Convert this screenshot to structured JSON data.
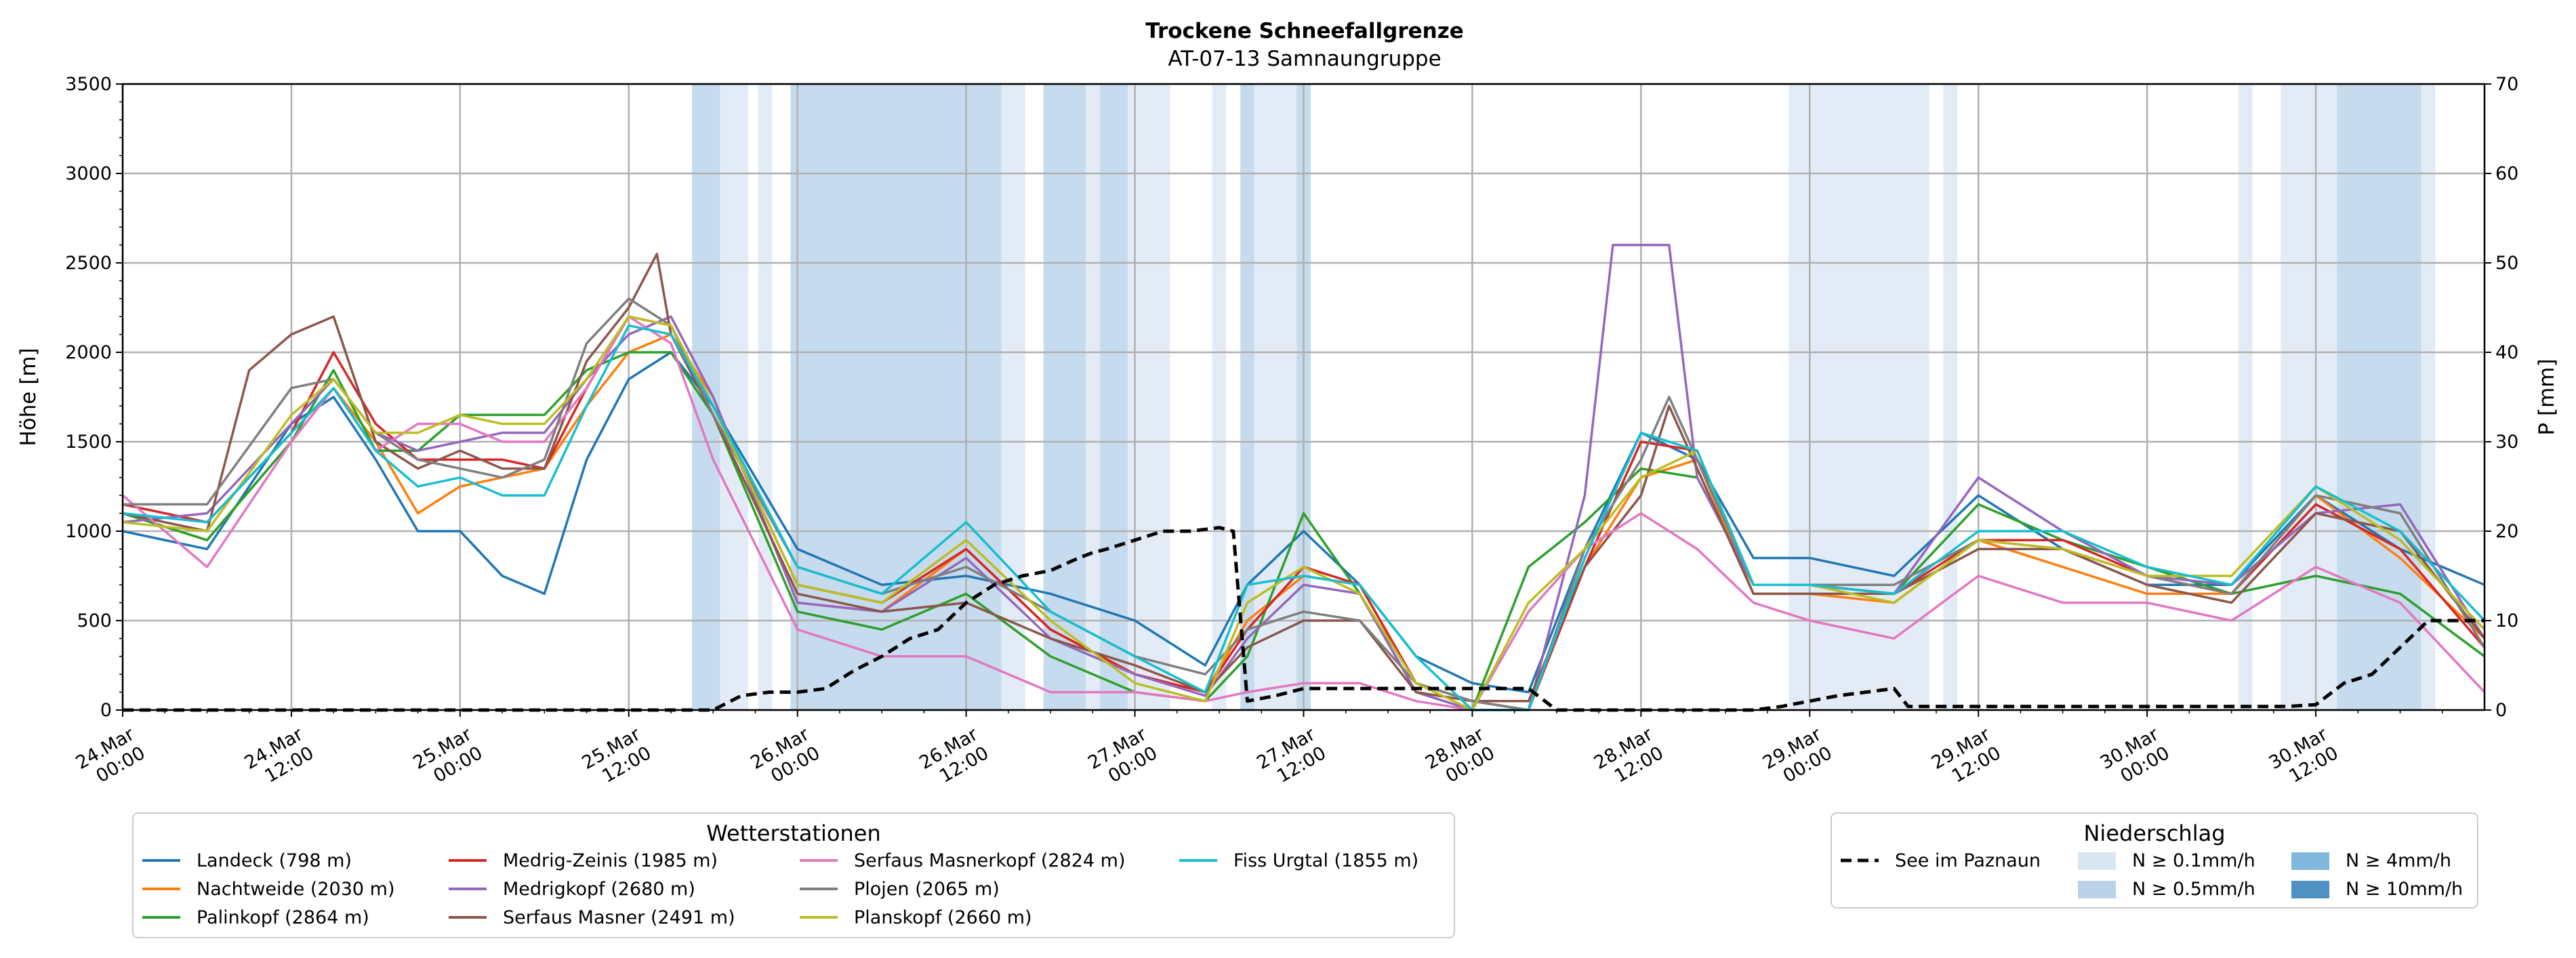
{
  "chart_data": {
    "type": "line",
    "title": "Trockene Schneefallgrenze",
    "subtitle": "AT-07-13 Samnaungruppe",
    "ylabel": "Höhe [m]",
    "y2label": "P [mm]",
    "ylim": [
      0,
      3500
    ],
    "y2lim": [
      0,
      70
    ],
    "yticks": [
      0,
      500,
      1000,
      1500,
      2000,
      2500,
      3000,
      3500
    ],
    "y2ticks": [
      0,
      10,
      20,
      30,
      40,
      50,
      60,
      70
    ],
    "x_unit": "hours since 24.Mar 00:00",
    "xlim": [
      0,
      168
    ],
    "xticks": [
      {
        "pos": 0,
        "line1": "24.Mar",
        "line2": "00:00"
      },
      {
        "pos": 12,
        "line1": "24.Mar",
        "line2": "12:00"
      },
      {
        "pos": 24,
        "line1": "25.Mar",
        "line2": "00:00"
      },
      {
        "pos": 36,
        "line1": "25.Mar",
        "line2": "12:00"
      },
      {
        "pos": 48,
        "line1": "26.Mar",
        "line2": "00:00"
      },
      {
        "pos": 60,
        "line1": "26.Mar",
        "line2": "12:00"
      },
      {
        "pos": 72,
        "line1": "27.Mar",
        "line2": "00:00"
      },
      {
        "pos": 84,
        "line1": "27.Mar",
        "line2": "12:00"
      },
      {
        "pos": 96,
        "line1": "28.Mar",
        "line2": "00:00"
      },
      {
        "pos": 108,
        "line1": "28.Mar",
        "line2": "12:00"
      },
      {
        "pos": 120,
        "line1": "29.Mar",
        "line2": "00:00"
      },
      {
        "pos": 132,
        "line1": "29.Mar",
        "line2": "12:00"
      },
      {
        "pos": 144,
        "line1": "30.Mar",
        "line2": "00:00"
      },
      {
        "pos": 156,
        "line1": "30.Mar",
        "line2": "12:00"
      }
    ],
    "precip_bands": [
      {
        "start": 40.5,
        "end": 42.5,
        "level": 2
      },
      {
        "start": 42.5,
        "end": 44.5,
        "level": 1
      },
      {
        "start": 45.2,
        "end": 46.2,
        "level": 1
      },
      {
        "start": 47.5,
        "end": 62.5,
        "level": 2
      },
      {
        "start": 62.5,
        "end": 64.2,
        "level": 1
      },
      {
        "start": 65.5,
        "end": 68.5,
        "level": 2
      },
      {
        "start": 68.5,
        "end": 69.5,
        "level": 1
      },
      {
        "start": 69.5,
        "end": 71.5,
        "level": 2
      },
      {
        "start": 71.5,
        "end": 74.5,
        "level": 1
      },
      {
        "start": 77.5,
        "end": 78.5,
        "level": 1
      },
      {
        "start": 79.5,
        "end": 80.5,
        "level": 2
      },
      {
        "start": 80.5,
        "end": 83.5,
        "level": 1
      },
      {
        "start": 83.5,
        "end": 84.5,
        "level": 2
      },
      {
        "start": 118.5,
        "end": 128.5,
        "level": 1
      },
      {
        "start": 129.5,
        "end": 130.5,
        "level": 1
      },
      {
        "start": 150.5,
        "end": 151.5,
        "level": 1
      },
      {
        "start": 153.5,
        "end": 157.5,
        "level": 1
      },
      {
        "start": 157.5,
        "end": 163.5,
        "level": 2
      },
      {
        "start": 163.5,
        "end": 164.5,
        "level": 1
      }
    ],
    "series": [
      {
        "name": "Landeck (798 m)",
        "color": "#1f77b4",
        "x": [
          0,
          6,
          12,
          15,
          18,
          21,
          24,
          27,
          30,
          33,
          36,
          39,
          42,
          48,
          54,
          60,
          66,
          72,
          77,
          80,
          84,
          88,
          92,
          96,
          100,
          104,
          108,
          112,
          116,
          120,
          126,
          132,
          138,
          144,
          150,
          156,
          162,
          168
        ],
        "y": [
          1000,
          900,
          1600,
          1750,
          1400,
          1000,
          1000,
          750,
          650,
          1400,
          1850,
          2000,
          1700,
          900,
          700,
          750,
          650,
          500,
          250,
          700,
          1000,
          700,
          300,
          150,
          100,
          900,
          1550,
          1400,
          850,
          850,
          750,
          1200,
          900,
          700,
          700,
          1200,
          900,
          700
        ]
      },
      {
        "name": "Nachtweide (2030 m)",
        "color": "#ff7f0e",
        "x": [
          0,
          6,
          12,
          15,
          18,
          21,
          24,
          27,
          30,
          33,
          36,
          39,
          42,
          48,
          54,
          60,
          66,
          72,
          77,
          80,
          84,
          88,
          92,
          96,
          100,
          104,
          108,
          112,
          116,
          120,
          126,
          132,
          138,
          144,
          150,
          156,
          162,
          168
        ],
        "y": [
          1100,
          950,
          1500,
          1800,
          1500,
          1100,
          1250,
          1300,
          1350,
          1700,
          2000,
          2100,
          1750,
          600,
          550,
          900,
          450,
          200,
          100,
          500,
          750,
          700,
          150,
          50,
          0,
          800,
          1300,
          1400,
          650,
          650,
          600,
          950,
          800,
          650,
          650,
          1200,
          850,
          400
        ]
      },
      {
        "name": "Palinkopf (2864 m)",
        "color": "#2ca02c",
        "x": [
          0,
          6,
          12,
          15,
          18,
          21,
          24,
          27,
          30,
          33,
          36,
          39,
          42,
          48,
          54,
          60,
          66,
          72,
          77,
          80,
          84,
          88,
          92,
          96,
          100,
          104,
          108,
          112,
          116,
          120,
          126,
          132,
          138,
          144,
          150,
          156,
          162,
          168
        ],
        "y": [
          1100,
          950,
          1500,
          1900,
          1450,
          1450,
          1650,
          1650,
          1650,
          1900,
          2000,
          2000,
          1650,
          550,
          450,
          650,
          300,
          100,
          50,
          300,
          1100,
          650,
          100,
          0,
          800,
          1050,
          1350,
          1300,
          700,
          700,
          650,
          1150,
          950,
          800,
          650,
          750,
          650,
          300
        ]
      },
      {
        "name": "Medrig-Zeinis (1985 m)",
        "color": "#d62728",
        "x": [
          0,
          6,
          12,
          15,
          18,
          21,
          24,
          27,
          30,
          33,
          36,
          39,
          42,
          48,
          54,
          60,
          66,
          72,
          77,
          80,
          84,
          88,
          92,
          96,
          100,
          104,
          108,
          112,
          116,
          120,
          126,
          132,
          138,
          144,
          150,
          156,
          162,
          168
        ],
        "y": [
          1150,
          1050,
          1550,
          2000,
          1600,
          1400,
          1400,
          1400,
          1350,
          1800,
          2200,
          2150,
          1700,
          700,
          600,
          900,
          450,
          200,
          100,
          450,
          800,
          700,
          150,
          50,
          0,
          800,
          1500,
          1450,
          700,
          700,
          650,
          950,
          950,
          750,
          650,
          1150,
          900,
          350
        ]
      },
      {
        "name": "Medrigkopf (2680 m)",
        "color": "#9467bd",
        "x": [
          0,
          6,
          12,
          15,
          18,
          21,
          24,
          27,
          30,
          33,
          36,
          39,
          42,
          48,
          54,
          60,
          66,
          72,
          77,
          80,
          84,
          88,
          92,
          96,
          98,
          100,
          104,
          106,
          108,
          110,
          112,
          116,
          120,
          126,
          132,
          138,
          144,
          150,
          156,
          162,
          168
        ],
        "y": [
          1050,
          1100,
          1600,
          1850,
          1550,
          1450,
          1500,
          1550,
          1550,
          1850,
          2100,
          2200,
          1750,
          600,
          550,
          850,
          400,
          200,
          80,
          400,
          700,
          650,
          100,
          0,
          0,
          0,
          1200,
          2600,
          2600,
          2600,
          1300,
          700,
          700,
          650,
          1300,
          1000,
          750,
          700,
          1100,
          1150,
          400
        ]
      },
      {
        "name": "Serfaus Masner (2491 m)",
        "color": "#8c564b",
        "x": [
          0,
          6,
          9,
          12,
          15,
          18,
          21,
          24,
          27,
          30,
          33,
          36,
          38,
          39,
          42,
          48,
          54,
          60,
          66,
          72,
          77,
          80,
          84,
          88,
          92,
          96,
          100,
          104,
          108,
          110,
          112,
          116,
          120,
          126,
          132,
          138,
          144,
          150,
          156,
          162,
          168
        ],
        "y": [
          1100,
          1000,
          1900,
          2100,
          2200,
          1500,
          1350,
          1450,
          1350,
          1350,
          1950,
          2250,
          2550,
          2100,
          1650,
          650,
          550,
          600,
          400,
          250,
          100,
          350,
          500,
          500,
          100,
          50,
          50,
          800,
          1200,
          1700,
          1350,
          650,
          650,
          650,
          900,
          900,
          700,
          600,
          1100,
          1000,
          400
        ]
      },
      {
        "name": "Serfaus Masnerkopf (2824 m)",
        "color": "#e377c2",
        "x": [
          0,
          6,
          12,
          15,
          18,
          21,
          24,
          27,
          30,
          33,
          36,
          39,
          42,
          48,
          54,
          60,
          66,
          72,
          77,
          80,
          84,
          88,
          92,
          96,
          100,
          104,
          108,
          112,
          116,
          120,
          126,
          132,
          138,
          144,
          150,
          156,
          162,
          168
        ],
        "y": [
          1200,
          800,
          1500,
          1800,
          1450,
          1600,
          1600,
          1500,
          1500,
          1800,
          2200,
          2050,
          1400,
          450,
          300,
          300,
          100,
          100,
          50,
          100,
          150,
          150,
          50,
          0,
          550,
          900,
          1100,
          900,
          600,
          500,
          400,
          750,
          600,
          600,
          500,
          800,
          600,
          100
        ]
      },
      {
        "name": "Plojen (2065 m)",
        "color": "#7f7f7f",
        "x": [
          0,
          6,
          12,
          15,
          18,
          21,
          24,
          27,
          30,
          33,
          36,
          39,
          42,
          48,
          54,
          60,
          66,
          72,
          77,
          80,
          84,
          88,
          92,
          96,
          100,
          104,
          108,
          110,
          112,
          116,
          120,
          126,
          132,
          138,
          144,
          150,
          156,
          162,
          168
        ],
        "y": [
          1150,
          1150,
          1800,
          1850,
          1550,
          1400,
          1350,
          1300,
          1400,
          2050,
          2300,
          2150,
          1650,
          800,
          650,
          800,
          550,
          300,
          200,
          450,
          550,
          500,
          150,
          50,
          0,
          900,
          1400,
          1750,
          1400,
          700,
          700,
          700,
          950,
          900,
          750,
          650,
          1200,
          1100,
          350
        ]
      },
      {
        "name": "Planskopf (2660 m)",
        "color": "#bcbd22",
        "x": [
          0,
          6,
          12,
          15,
          18,
          21,
          24,
          27,
          30,
          33,
          36,
          39,
          42,
          48,
          54,
          60,
          66,
          72,
          77,
          80,
          84,
          88,
          92,
          96,
          100,
          104,
          108,
          112,
          116,
          120,
          126,
          132,
          138,
          144,
          150,
          156,
          162,
          168
        ],
        "y": [
          1050,
          1000,
          1650,
          1850,
          1550,
          1550,
          1650,
          1600,
          1600,
          1850,
          2200,
          2150,
          1700,
          700,
          600,
          950,
          500,
          150,
          50,
          600,
          800,
          650,
          150,
          0,
          600,
          900,
          1300,
          1450,
          700,
          700,
          600,
          950,
          900,
          750,
          750,
          1250,
          950,
          450
        ]
      },
      {
        "name": "Fiss Urgtal  (1855 m)",
        "color": "#17becf",
        "x": [
          0,
          6,
          12,
          15,
          18,
          21,
          24,
          27,
          30,
          33,
          36,
          39,
          42,
          48,
          54,
          60,
          66,
          72,
          77,
          80,
          84,
          88,
          92,
          96,
          100,
          104,
          108,
          112,
          116,
          120,
          126,
          132,
          138,
          144,
          150,
          156,
          162,
          168
        ],
        "y": [
          1100,
          1050,
          1550,
          1800,
          1450,
          1250,
          1300,
          1200,
          1200,
          1700,
          2150,
          2100,
          1700,
          800,
          650,
          1050,
          550,
          300,
          100,
          700,
          750,
          700,
          300,
          0,
          0,
          850,
          1550,
          1450,
          700,
          700,
          650,
          1000,
          1000,
          800,
          700,
          1250,
          1000,
          500
        ]
      },
      {
        "name": "See im Paznaun",
        "color": "#000000",
        "dashed": true,
        "x": [
          0,
          40,
          42,
          44,
          46,
          48,
          50,
          52,
          54,
          55,
          56,
          58,
          60,
          62,
          64,
          66,
          68,
          69,
          70,
          72,
          74,
          76,
          78,
          79,
          80,
          82,
          84,
          86,
          88,
          90,
          92,
          94,
          96,
          98,
          100,
          102,
          104,
          106,
          108,
          110,
          112,
          114,
          116,
          118,
          120,
          122,
          124,
          126,
          127,
          128,
          130,
          132,
          134,
          136,
          138,
          140,
          142,
          144,
          146,
          148,
          150,
          152,
          154,
          156,
          158,
          160,
          162,
          164,
          168
        ],
        "y": [
          0,
          0,
          0,
          80,
          100,
          100,
          120,
          220,
          300,
          350,
          400,
          450,
          600,
          700,
          750,
          780,
          850,
          880,
          900,
          950,
          1000,
          1000,
          1020,
          1000,
          50,
          80,
          120,
          120,
          120,
          120,
          120,
          120,
          120,
          120,
          120,
          0,
          0,
          0,
          0,
          0,
          0,
          0,
          0,
          20,
          50,
          80,
          100,
          120,
          20,
          20,
          20,
          20,
          20,
          20,
          20,
          20,
          20,
          20,
          20,
          20,
          20,
          20,
          20,
          30,
          150,
          200,
          350,
          500,
          500
        ]
      }
    ],
    "legend_stations_title": "Wetterstationen",
    "legend_precip_title": "Niederschlag",
    "precip_levels": [
      {
        "label": "N ≥ 0.1mm/h",
        "color": "#dbe6f3"
      },
      {
        "label": "N ≥ 0.5mm/h",
        "color": "#b9d2e8"
      },
      {
        "label": "N ≥ 4mm/h",
        "color": "#80b7dc"
      },
      {
        "label": "N ≥ 10mm/h",
        "color": "#4f91c3"
      }
    ]
  }
}
